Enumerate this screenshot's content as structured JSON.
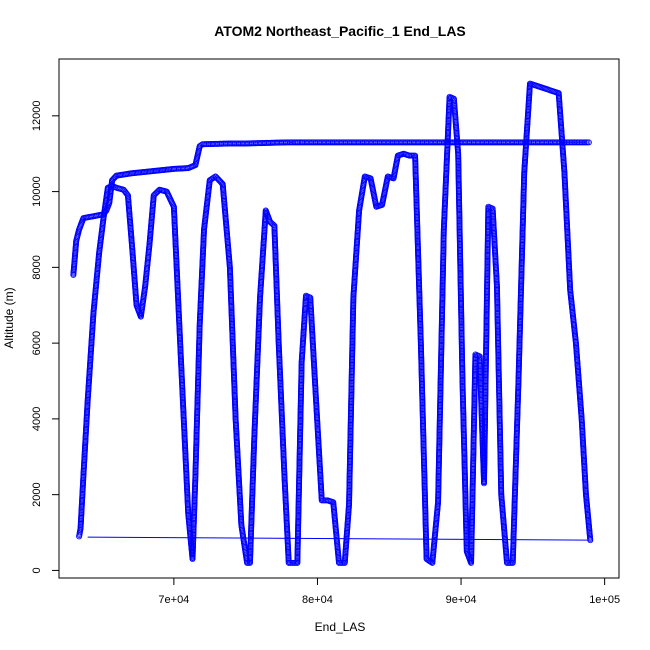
{
  "chart_data": {
    "type": "scatter",
    "title": "ATOM2 Northeast_Pacific_1 End_LAS",
    "xlabel": "End_LAS",
    "ylabel": "Altitude (m)",
    "xlim": [
      62000,
      101000
    ],
    "ylim": [
      -200,
      13500
    ],
    "xticks": [
      70000,
      80000,
      90000,
      100000
    ],
    "xtick_labels": [
      "7e+04",
      "8e+04",
      "9e+04",
      "1e+05"
    ],
    "yticks": [
      0,
      2000,
      4000,
      6000,
      8000,
      10000,
      12000
    ],
    "ytick_labels": [
      "0",
      "2000",
      "4000",
      "6000",
      "8000",
      "10000",
      "12000"
    ],
    "marker": "open-circle",
    "colors": {
      "points": "#0000ff",
      "axes": "#000000"
    },
    "series": [
      {
        "x": [
          63000,
          63200,
          63400,
          63700,
          64400,
          65100,
          65300,
          65500,
          65700,
          66000,
          66500,
          67000,
          68000,
          69000,
          70000,
          71000,
          71500,
          71800,
          72000,
          73000,
          74000,
          75000,
          76000,
          77000,
          78000,
          78400,
          79000,
          80000,
          81000,
          82000,
          83000,
          84000,
          85000,
          86000,
          87000,
          88000,
          89000,
          90000,
          91000,
          92000,
          93000,
          94000,
          95000,
          96000,
          97000,
          97500,
          98000,
          98500,
          98900
        ],
        "y": [
          7800,
          8700,
          9000,
          9300,
          9350,
          9400,
          9500,
          9700,
          10300,
          10420,
          10450,
          10480,
          10520,
          10560,
          10600,
          10620,
          10700,
          11200,
          11250,
          11260,
          11270,
          11270,
          11280,
          11290,
          11300,
          11300,
          11300,
          11300,
          11300,
          11300,
          11300,
          11300,
          11300,
          11300,
          11300,
          11300,
          11300,
          11300,
          11300,
          11300,
          11300,
          11300,
          11300,
          11300,
          11300,
          11300,
          11300,
          11300,
          11300
        ]
      },
      {
        "x": [
          63400,
          63500,
          63700,
          64000,
          64400,
          64800,
          65100,
          65400,
          65700,
          66000,
          66500,
          66800,
          67100,
          67400,
          67700,
          68000,
          68300,
          68600,
          69000,
          69500,
          70000,
          70500,
          71000,
          71300,
          71500,
          71800,
          72100,
          72500,
          72900,
          73400,
          73900,
          74300,
          74700,
          75100,
          75300,
          75600,
          76000,
          76400,
          76700,
          77000,
          77300,
          77700,
          78000,
          78300,
          78600,
          78900,
          79200,
          79500,
          79900,
          80300,
          80700,
          81100,
          81500,
          81900,
          82200,
          82500,
          82900,
          83300,
          83700,
          84100,
          84500,
          84900,
          85300,
          85600,
          86000,
          86400,
          86800,
          87200,
          87600,
          88000,
          88400,
          88800,
          89200,
          89500,
          89800,
          90100,
          90400,
          90700,
          91000,
          91300,
          91600,
          91900,
          92200,
          92500,
          92800,
          93200,
          93600,
          94000,
          94400,
          94800,
          95200,
          95600,
          96000,
          96400,
          96800,
          97200,
          97600,
          98000,
          98400,
          98700,
          99000
        ],
        "y": [
          900,
          1100,
          2500,
          4500,
          6800,
          8400,
          9300,
          10100,
          10150,
          10100,
          10050,
          9900,
          8500,
          7000,
          6700,
          7500,
          8600,
          9900,
          10050,
          10000,
          9600,
          5500,
          1500,
          300,
          2500,
          6500,
          9000,
          10300,
          10400,
          10200,
          8000,
          4000,
          1200,
          200,
          200,
          3500,
          7200,
          9500,
          9200,
          9100,
          6000,
          2500,
          200,
          200,
          200,
          5500,
          7250,
          7200,
          4500,
          1850,
          1850,
          1800,
          200,
          200,
          1750,
          7200,
          9500,
          10400,
          10350,
          9600,
          9650,
          10400,
          10350,
          10950,
          11000,
          10950,
          10950,
          6000,
          300,
          200,
          1800,
          9000,
          12500,
          12450,
          11000,
          5000,
          500,
          200,
          5700,
          5650,
          2300,
          9600,
          9550,
          7500,
          2000,
          200,
          200,
          5000,
          10500,
          12850,
          12800,
          12750,
          12700,
          12650,
          12600,
          10500,
          7400,
          6000,
          4000,
          2000,
          800
        ],
        "marker": "open-circle"
      },
      {
        "x": [
          64000,
          98800
        ],
        "y": [
          880,
          800
        ],
        "style": "line"
      }
    ]
  }
}
